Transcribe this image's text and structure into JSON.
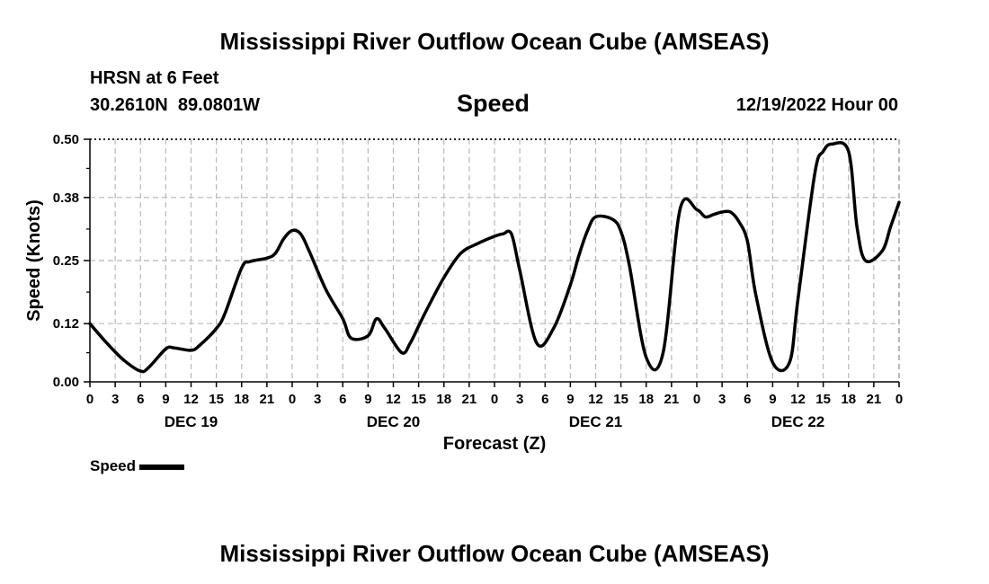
{
  "header": {
    "title": "Mississippi River Outflow Ocean Cube (AMSEAS)",
    "station": "HRSN at 6 Feet",
    "coords": "30.2610N  89.0801W",
    "chart_label": "Speed",
    "date": "12/19/2022 Hour 00"
  },
  "footer": {
    "title": "Mississippi River Outflow Ocean Cube (AMSEAS)"
  },
  "legend": {
    "label": "Speed"
  },
  "chart_data": {
    "type": "line",
    "title": "Speed",
    "xlabel": "Forecast (Z)",
    "ylabel": "Speed (Knots)",
    "xlim": [
      0,
      96
    ],
    "ylim": [
      0,
      0.5
    ],
    "yticks": [
      0.0,
      0.12,
      0.25,
      0.38,
      0.5
    ],
    "ytick_labels": [
      "0.00",
      "0.12",
      "0.25",
      "0.38",
      "0.50"
    ],
    "xtick_labels": [
      "0",
      "3",
      "6",
      "9",
      "12",
      "15",
      "18",
      "21",
      "0",
      "3",
      "6",
      "9",
      "12",
      "15",
      "18",
      "21",
      "0",
      "3",
      "6",
      "9",
      "12",
      "15",
      "18",
      "21",
      "0",
      "3",
      "6",
      "9",
      "12",
      "15",
      "18",
      "21",
      "0"
    ],
    "day_labels": [
      "DEC 19",
      "DEC 20",
      "DEC 21",
      "DEC 22"
    ],
    "grid": true,
    "series": [
      {
        "name": "Speed",
        "color": "#000000",
        "x": [
          0,
          2,
          4,
          6,
          7,
          9,
          10,
          12,
          13,
          15,
          16,
          18,
          19,
          21,
          22,
          23,
          24,
          25,
          26,
          28,
          30,
          31,
          33,
          34,
          35,
          37,
          38,
          39,
          40,
          42,
          44,
          46,
          48,
          49,
          50,
          51,
          53,
          55,
          57,
          58,
          59,
          60,
          62,
          63,
          64,
          66,
          68,
          70,
          72,
          73,
          74,
          75,
          76,
          77,
          78,
          79,
          81,
          83,
          84,
          86,
          87,
          88,
          90,
          91,
          92,
          94,
          95,
          96
        ],
        "y": [
          0.12,
          0.08,
          0.045,
          0.022,
          0.03,
          0.068,
          0.07,
          0.065,
          0.075,
          0.11,
          0.14,
          0.235,
          0.248,
          0.255,
          0.265,
          0.295,
          0.312,
          0.305,
          0.27,
          0.19,
          0.13,
          0.09,
          0.095,
          0.13,
          0.11,
          0.06,
          0.08,
          0.115,
          0.15,
          0.215,
          0.265,
          0.285,
          0.3,
          0.305,
          0.305,
          0.23,
          0.08,
          0.11,
          0.2,
          0.26,
          0.31,
          0.34,
          0.335,
          0.31,
          0.24,
          0.05,
          0.06,
          0.355,
          0.355,
          0.34,
          0.345,
          0.35,
          0.35,
          0.33,
          0.29,
          0.18,
          0.04,
          0.04,
          0.17,
          0.43,
          0.475,
          0.49,
          0.475,
          0.32,
          0.25,
          0.27,
          0.32,
          0.37
        ]
      }
    ]
  }
}
